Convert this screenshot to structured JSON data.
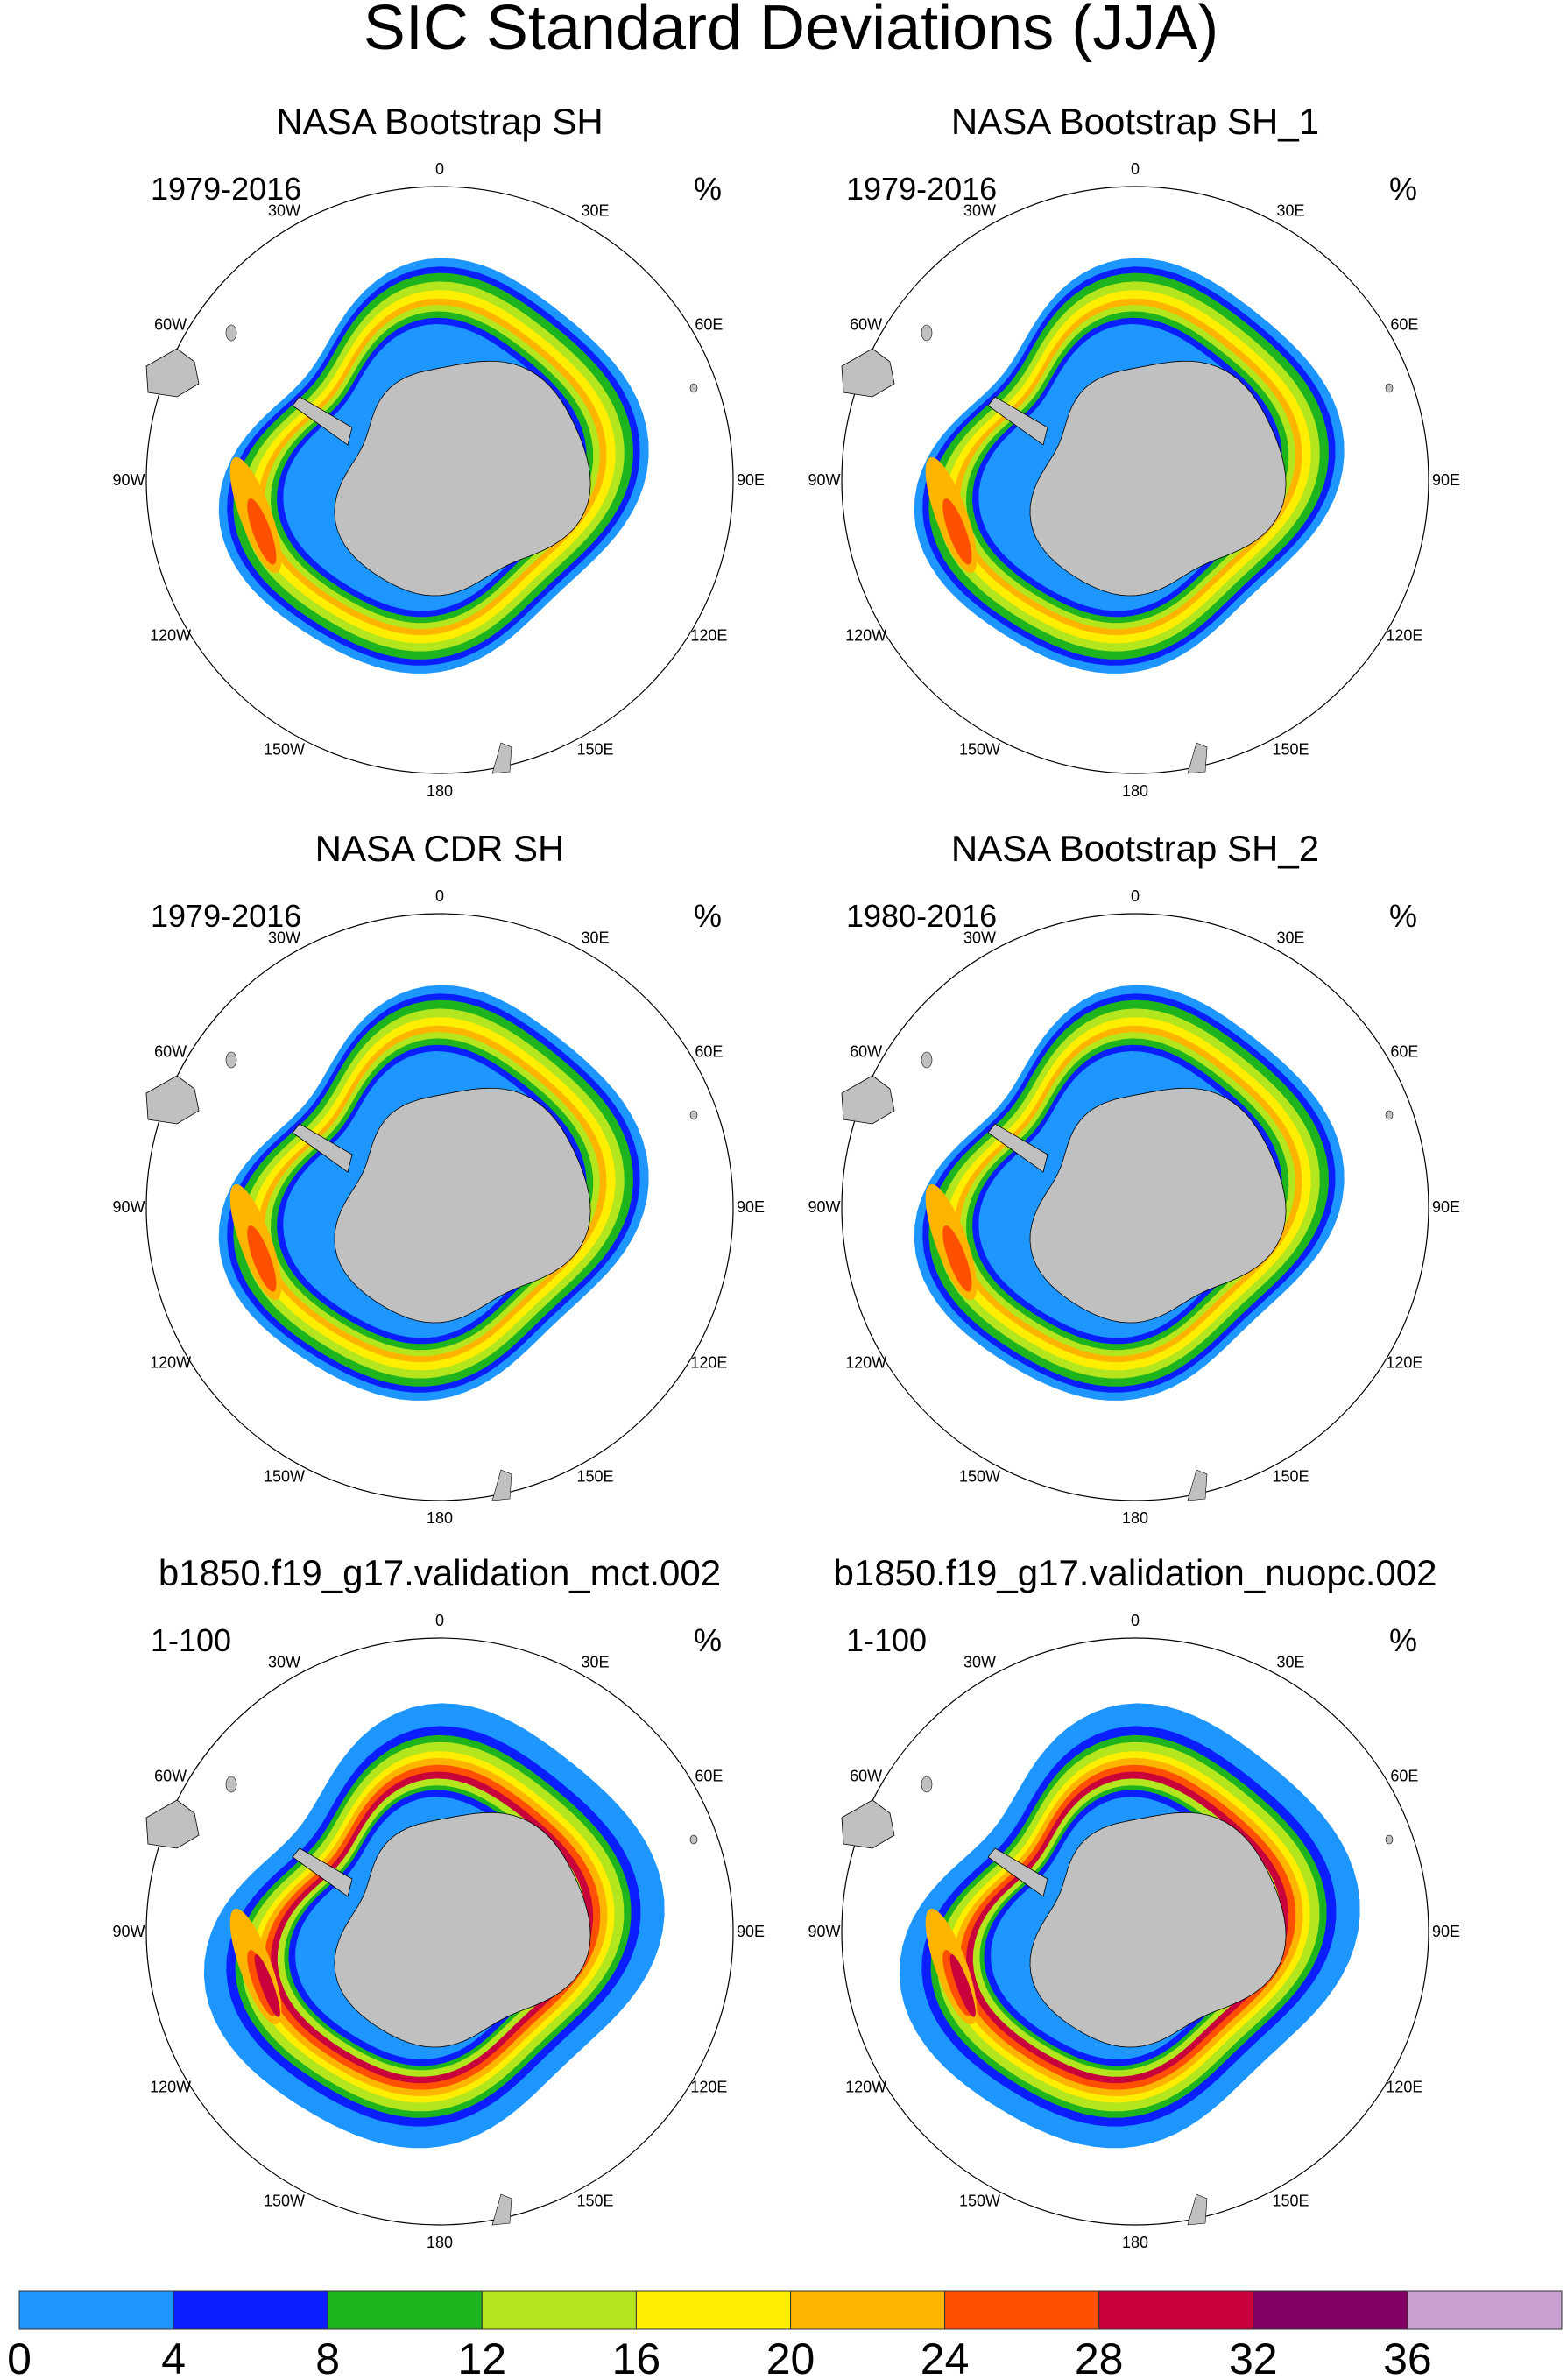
{
  "figure": {
    "title": "SIC Standard Deviations (JJA)",
    "units_symbol": "%"
  },
  "longitude_labels": [
    "0",
    "30E",
    "60E",
    "90E",
    "120E",
    "150E",
    "180",
    "150W",
    "120W",
    "90W",
    "60W",
    "30W"
  ],
  "panels": [
    {
      "title": "NASA Bootstrap SH",
      "period": "1979-2016",
      "units": "%",
      "pattern": "obs"
    },
    {
      "title": "NASA Bootstrap SH_1",
      "period": "1979-2016",
      "units": "%",
      "pattern": "obs"
    },
    {
      "title": "NASA CDR SH",
      "period": "1979-2016",
      "units": "%",
      "pattern": "obs"
    },
    {
      "title": "NASA Bootstrap SH_2",
      "period": "1980-2016",
      "units": "%",
      "pattern": "obs"
    },
    {
      "title": "b1850.f19_g17.validation_mct.002",
      "period": "1-100",
      "units": "%",
      "pattern": "model"
    },
    {
      "title": "b1850.f19_g17.validation_nuopc.002",
      "period": "1-100",
      "units": "%",
      "pattern": "model"
    }
  ],
  "colorbar": {
    "labels": [
      "0",
      "4",
      "8",
      "12",
      "16",
      "20",
      "24",
      "28",
      "32",
      "36"
    ],
    "colors": [
      "#1e96ff",
      "#0a1eff",
      "#1eb41e",
      "#b4e61e",
      "#ffee00",
      "#ffb400",
      "#ff5000",
      "#c8003c",
      "#820064",
      "#c8a0d2"
    ]
  },
  "land_color": "#c0c0c0"
}
